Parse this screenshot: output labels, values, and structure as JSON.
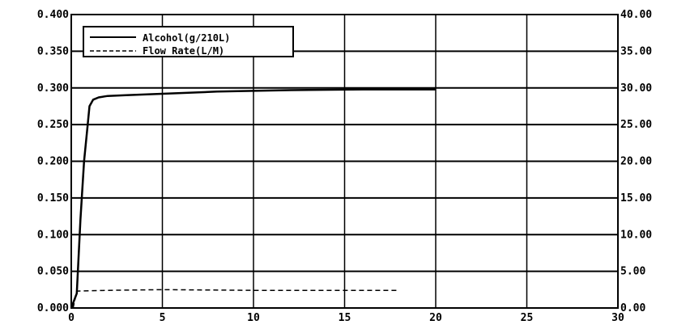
{
  "chart_data": {
    "type": "line",
    "title": "",
    "xlabel": "",
    "ylabel": "",
    "y2label": "",
    "xlim": [
      0,
      30
    ],
    "ylim": [
      0,
      0.4
    ],
    "y2lim": [
      0,
      40
    ],
    "grid": true,
    "legend_position": "top-left",
    "x_ticks": [
      "0",
      "5",
      "10",
      "15",
      "20",
      "25",
      "30"
    ],
    "y_ticks": [
      "0.000",
      "0.050",
      "0.100",
      "0.150",
      "0.200",
      "0.250",
      "0.300",
      "0.350",
      "0.400"
    ],
    "y2_ticks": [
      "0.00",
      "5.00",
      "10.00",
      "15.00",
      "20.00",
      "25.00",
      "30.00",
      "35.00",
      "40.00"
    ],
    "series": [
      {
        "name": "Alcohol(g/210L)",
        "axis": "left",
        "style": "solid",
        "x": [
          0,
          0.3,
          0.5,
          0.7,
          0.9,
          1.0,
          1.2,
          1.5,
          2.0,
          3.0,
          5.0,
          8.0,
          12.0,
          16.0,
          20.0
        ],
        "y": [
          0.0,
          0.02,
          0.12,
          0.2,
          0.25,
          0.275,
          0.284,
          0.287,
          0.289,
          0.29,
          0.292,
          0.295,
          0.297,
          0.298,
          0.298
        ]
      },
      {
        "name": "Flow Rate(L/M)",
        "axis": "right",
        "style": "dashed",
        "x": [
          0.1,
          0.3,
          2.0,
          5.0,
          10.0,
          15.0,
          18.0
        ],
        "y": [
          0.0,
          2.3,
          2.4,
          2.5,
          2.4,
          2.4,
          2.4
        ]
      }
    ],
    "colors": {
      "line": "#000000",
      "grid": "#000000",
      "background": "#ffffff"
    }
  }
}
